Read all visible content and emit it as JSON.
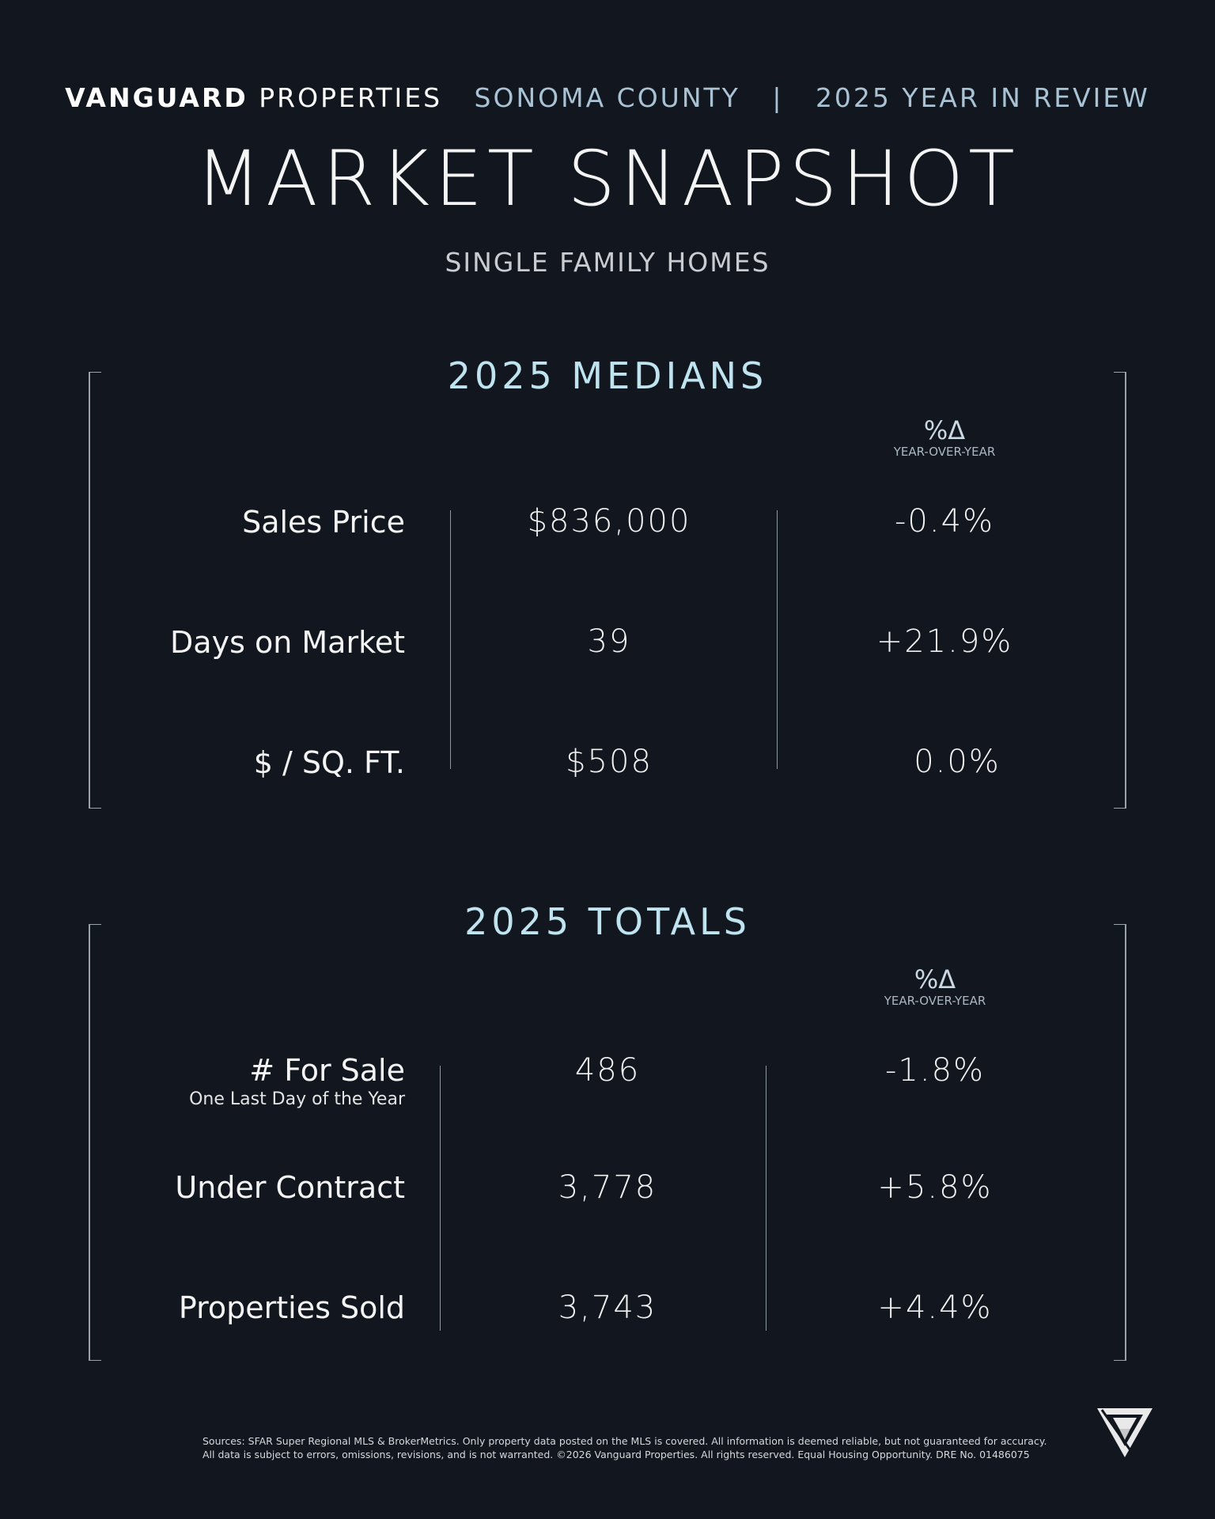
{
  "header": {
    "brand_bold": "VANGUARD",
    "brand_light": "PROPERTIES",
    "region": "SONOMA COUNTY",
    "separator": "|",
    "period": "2025 YEAR IN REVIEW"
  },
  "title": "MARKET SNAPSHOT",
  "subtitle": "SINGLE FAMILY HOMES",
  "medians": {
    "title": "2025 MEDIANS",
    "delta_symbol": "%Δ",
    "delta_caption": "YEAR-OVER-YEAR",
    "rows": [
      {
        "label": "Sales Price",
        "value": "$836,000",
        "change": "-0.4%"
      },
      {
        "label": "Days on Market",
        "value": "39",
        "change": "+21.9%"
      },
      {
        "label": "$ / SQ. FT.",
        "value": "$508",
        "change": "0.0%"
      }
    ]
  },
  "totals": {
    "title": "2025 TOTALS",
    "delta_symbol": "%Δ",
    "delta_caption": "YEAR-OVER-YEAR",
    "rows": [
      {
        "label": "# For Sale",
        "sublabel": "One Last Day of the Year",
        "value": "486",
        "change": "-1.8%"
      },
      {
        "label": "Under Contract",
        "value": "3,778",
        "change": "+5.8%"
      },
      {
        "label": "Properties Sold",
        "value": "3,743",
        "change": "+4.4%"
      }
    ]
  },
  "footer": {
    "line1": "Sources: SFAR Super Regional MLS & BrokerMetrics. Only property data posted on the MLS is covered. All information is deemed reliable, but not guaranteed for accuracy.",
    "line2": "All data is subject to errors, omissions, revisions, and is not warranted. ©2026 Vanguard Properties. All rights reserved. Equal Housing Opportunity. DRE No. 01486075"
  },
  "logo_icon": "vanguard-logo-icon"
}
